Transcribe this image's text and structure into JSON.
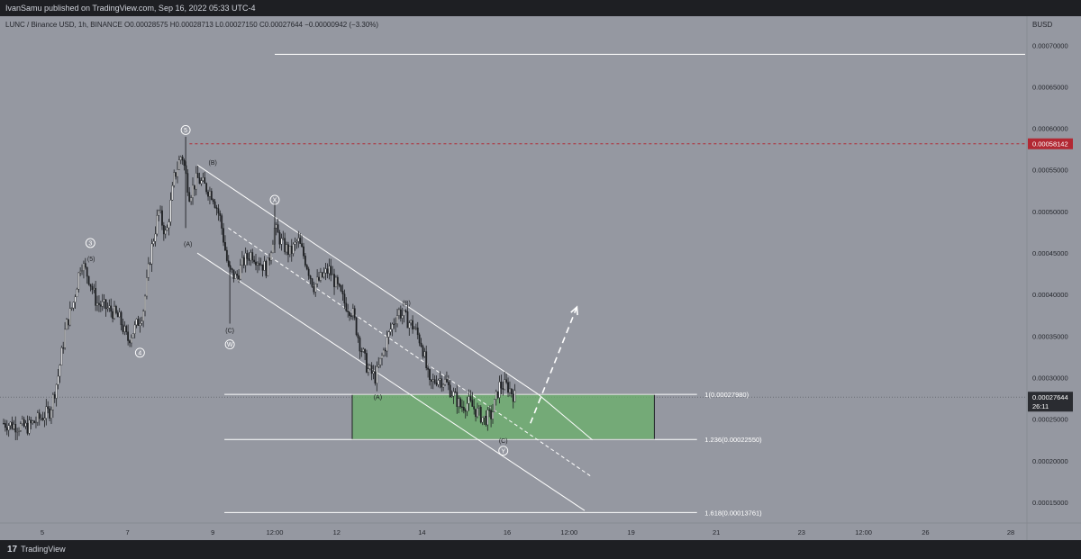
{
  "header": {
    "published": "IvanSamu published on TradingView.com, Sep 16, 2022 05:33 UTC-4"
  },
  "symbol_line": "LUNC / Binance USD, 1h, BINANCE  O0.00028575  H0.00028713  L0.00027150  C0.00027644  −0.00000942 (−3.30%)",
  "currency": "BUSD",
  "footer": {
    "brand": "TradingView",
    "logo_glyph": "17"
  },
  "colors": {
    "background": "#9598a1",
    "dark": "#1e1f23",
    "zone_fill": "#6ab06a",
    "red_line": "#b22833",
    "white": "#ffffff",
    "candle": "#1f2124"
  },
  "chart_data": {
    "type": "candlestick",
    "title": "LUNC / Binance USD, 1h, BINANCE",
    "ylim": [
      0.00012,
      0.00074
    ],
    "xlim": [
      0,
      130
    ],
    "y_ticks": [
      "0.00015000",
      "0.00020000",
      "0.00025000",
      "0.00030000",
      "0.00035000",
      "0.00040000",
      "0.00045000",
      "0.00050000",
      "0.00055000",
      "0.00060000",
      "0.00065000",
      "0.00070000"
    ],
    "y_tick_values": [
      0.00015,
      0.0002,
      0.00025,
      0.0003,
      0.00035,
      0.0004,
      0.00045,
      0.0005,
      0.00055,
      0.0006,
      0.00065,
      0.0007
    ],
    "x_ticks": [
      {
        "label": "5",
        "x": 5
      },
      {
        "label": "7",
        "x": 16
      },
      {
        "label": "9",
        "x": 27
      },
      {
        "label": "12:00",
        "x": 35
      },
      {
        "label": "12",
        "x": 43
      },
      {
        "label": "14",
        "x": 54
      },
      {
        "label": "16",
        "x": 65
      },
      {
        "label": "12:00",
        "x": 73
      },
      {
        "label": "19",
        "x": 81
      },
      {
        "label": "21",
        "x": 92
      },
      {
        "label": "23",
        "x": 103
      },
      {
        "label": "12:00",
        "x": 111
      },
      {
        "label": "26",
        "x": 119
      },
      {
        "label": "28",
        "x": 130
      }
    ],
    "price_path": [
      [
        0,
        0.000245
      ],
      [
        3,
        0.00024
      ],
      [
        6,
        0.00026
      ],
      [
        7,
        0.0003
      ],
      [
        8,
        0.00036
      ],
      [
        9,
        0.00039
      ],
      [
        10,
        0.00044
      ],
      [
        11,
        0.00042
      ],
      [
        12,
        0.00039
      ],
      [
        14,
        0.00038
      ],
      [
        15,
        0.00037
      ],
      [
        16,
        0.000345
      ],
      [
        17,
        0.00036
      ],
      [
        18,
        0.00038
      ],
      [
        19,
        0.00045
      ],
      [
        20,
        0.0005
      ],
      [
        21,
        0.00047
      ],
      [
        22,
        0.00054
      ],
      [
        23,
        0.00057
      ],
      [
        24,
        0.00052
      ],
      [
        25,
        0.00054
      ],
      [
        26,
        0.00053
      ],
      [
        27,
        0.00052
      ],
      [
        28,
        0.00049
      ],
      [
        29,
        0.00043
      ],
      [
        30,
        0.00042
      ],
      [
        31,
        0.00044
      ],
      [
        32,
        0.00045
      ],
      [
        33,
        0.00044
      ],
      [
        34,
        0.00043
      ],
      [
        35,
        0.00048
      ],
      [
        36,
        0.00046
      ],
      [
        37,
        0.00045
      ],
      [
        38,
        0.000465
      ],
      [
        39,
        0.00044
      ],
      [
        40,
        0.00041
      ],
      [
        41,
        0.00042
      ],
      [
        42,
        0.00043
      ],
      [
        43,
        0.00041
      ],
      [
        44,
        0.00039
      ],
      [
        45,
        0.00038
      ],
      [
        46,
        0.00034
      ],
      [
        47,
        0.00031
      ],
      [
        48,
        0.0003
      ],
      [
        49,
        0.00033
      ],
      [
        50,
        0.00036
      ],
      [
        51,
        0.00038
      ],
      [
        52,
        0.00037
      ],
      [
        53,
        0.00036
      ],
      [
        54,
        0.00034
      ],
      [
        55,
        0.00029
      ],
      [
        56,
        0.0003
      ],
      [
        57,
        0.000295
      ],
      [
        58,
        0.00028
      ],
      [
        59,
        0.000265
      ],
      [
        60,
        0.00027
      ],
      [
        61,
        0.00026
      ],
      [
        62,
        0.00025
      ],
      [
        63,
        0.000255
      ],
      [
        64,
        0.00029
      ],
      [
        65,
        0.00029
      ],
      [
        66,
        0.000277
      ]
    ],
    "last_price": {
      "value": 0.00027644,
      "label": "0.00027644",
      "countdown": "26:11"
    },
    "red_level": {
      "value": 0.00058142,
      "label": "0.00058142",
      "x_start": 24
    },
    "white_level": {
      "value": 0.00068907,
      "x_start": 35
    },
    "fib_levels": [
      {
        "label": "1(0.00027980)",
        "value": 0.0002798
      },
      {
        "label": "1.236(0.00022550)",
        "value": 0.0002255
      },
      {
        "label": "1.618(0.00013761)",
        "value": 0.00013761
      }
    ],
    "target_zone": {
      "x1": 45,
      "x2": 84,
      "y_top": 0.0002798,
      "y_bottom": 0.0002255
    },
    "channel_lines": [
      {
        "points": [
          [
            25,
            0.000556
          ],
          [
            69,
            0.00028
          ]
        ],
        "style": "solid"
      },
      {
        "points": [
          [
            25,
            0.00045
          ],
          [
            75,
            0.00014
          ]
        ],
        "style": "solid"
      },
      {
        "points": [
          [
            29,
            0.00048
          ],
          [
            76,
            0.00018
          ]
        ],
        "style": "dashed"
      },
      {
        "points": [
          [
            69,
            0.00028
          ],
          [
            76,
            0.000225
          ]
        ],
        "style": "solid"
      }
    ],
    "projection_arrow": {
      "from": [
        68,
        0.000245
      ],
      "to": [
        74,
        0.000385
      ]
    },
    "wave_labels": [
      {
        "text": "5",
        "x": 23.5,
        "y": 0.000598,
        "circled": true
      },
      {
        "text": "3",
        "x": 11.2,
        "y": 0.000462,
        "circled": true
      },
      {
        "text": "(5)",
        "x": 11.3,
        "y": 0.000443,
        "circled": false
      },
      {
        "text": "4",
        "x": 17.6,
        "y": 0.00033,
        "circled": true
      },
      {
        "text": "(B)",
        "x": 27,
        "y": 0.000559,
        "circled": false
      },
      {
        "text": "(A)",
        "x": 23.8,
        "y": 0.000461,
        "circled": false
      },
      {
        "text": "(C)",
        "x": 29.2,
        "y": 0.000357,
        "circled": false
      },
      {
        "text": "W",
        "x": 29.2,
        "y": 0.00034,
        "circled": true
      },
      {
        "text": "X",
        "x": 35,
        "y": 0.000514,
        "circled": true
      },
      {
        "text": "(B)",
        "x": 52,
        "y": 0.00039,
        "circled": false
      },
      {
        "text": "(A)",
        "x": 48.3,
        "y": 0.000277,
        "circled": false
      },
      {
        "text": "(C)",
        "x": 64.5,
        "y": 0.000224,
        "circled": false
      },
      {
        "text": "Y",
        "x": 64.5,
        "y": 0.000212,
        "circled": true
      }
    ]
  }
}
